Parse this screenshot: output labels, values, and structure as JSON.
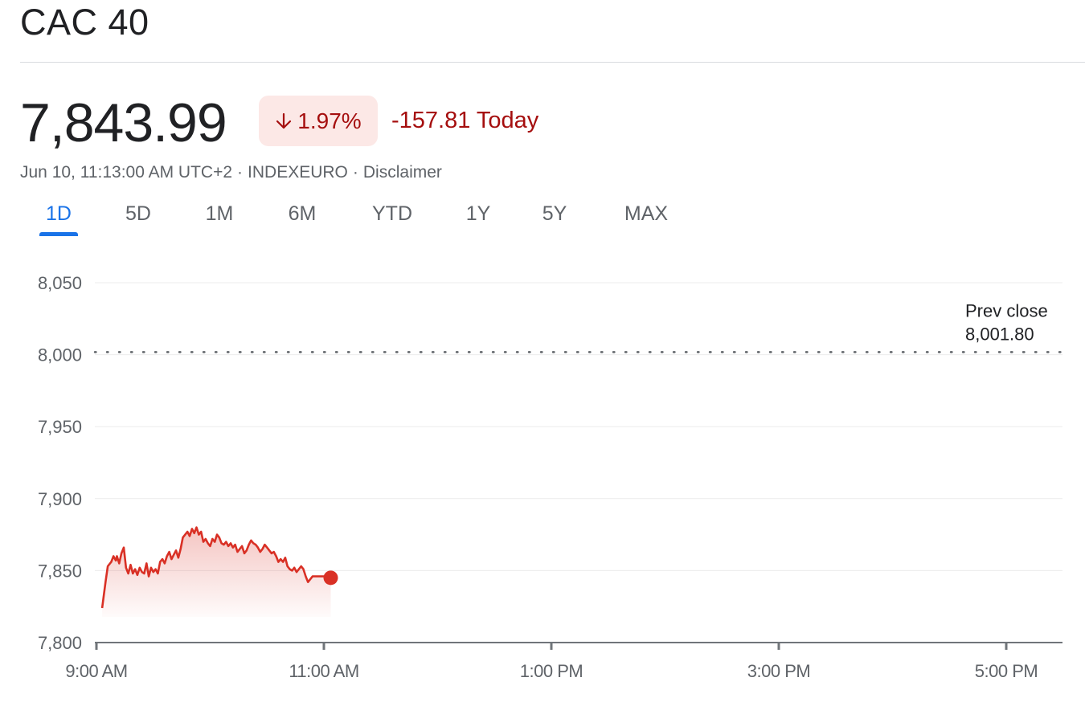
{
  "header": {
    "title": "CAC 40"
  },
  "quote": {
    "price": "7,843.99",
    "change_percent": "1.97%",
    "change_abs": "-157.81 Today",
    "timestamp": "Jun 10, 11:13:00 AM UTC+2",
    "exchange": "INDEXEURO",
    "disclaimer": "Disclaimer",
    "separator": "·",
    "down_color": "#d93025",
    "down_text_color": "#a50e0e"
  },
  "tabs": [
    {
      "label": "1D",
      "active": true
    },
    {
      "label": "5D"
    },
    {
      "label": "1M"
    },
    {
      "label": "6M"
    },
    {
      "label": "YTD"
    },
    {
      "label": "1Y"
    },
    {
      "label": "5Y"
    },
    {
      "label": "MAX"
    }
  ],
  "chart_data": {
    "type": "area",
    "ylim": [
      7800,
      8050
    ],
    "y_ticks": [
      8050,
      8000,
      7950,
      7900,
      7850,
      7800
    ],
    "y_tick_labels": [
      "8,050",
      "8,000",
      "7,950",
      "7,900",
      "7,850",
      "7,800"
    ],
    "x_range_hours": [
      9.0,
      17.5
    ],
    "x_ticks": [
      9,
      11,
      13,
      15,
      17
    ],
    "x_tick_labels": [
      "9:00 AM",
      "11:00 AM",
      "1:00 PM",
      "3:00 PM",
      "5:00 PM"
    ],
    "prev_close": {
      "label": "Prev close",
      "value": 8001.8,
      "value_label": "8,001.80"
    },
    "grid": true,
    "series": [
      {
        "color": "#d93025",
        "points": [
          [
            9.05,
            7824
          ],
          [
            9.08,
            7842
          ],
          [
            9.1,
            7853
          ],
          [
            9.13,
            7856
          ],
          [
            9.15,
            7860
          ],
          [
            9.17,
            7857
          ],
          [
            9.18,
            7860
          ],
          [
            9.2,
            7855
          ],
          [
            9.22,
            7862
          ],
          [
            9.24,
            7866
          ],
          [
            9.26,
            7852
          ],
          [
            9.28,
            7848
          ],
          [
            9.3,
            7854
          ],
          [
            9.32,
            7848
          ],
          [
            9.34,
            7851
          ],
          [
            9.36,
            7847
          ],
          [
            9.38,
            7852
          ],
          [
            9.4,
            7849
          ],
          [
            9.42,
            7848
          ],
          [
            9.44,
            7855
          ],
          [
            9.46,
            7846
          ],
          [
            9.48,
            7852
          ],
          [
            9.5,
            7849
          ],
          [
            9.52,
            7851
          ],
          [
            9.54,
            7848
          ],
          [
            9.56,
            7856
          ],
          [
            9.58,
            7858
          ],
          [
            9.6,
            7855
          ],
          [
            9.62,
            7860
          ],
          [
            9.64,
            7863
          ],
          [
            9.66,
            7858
          ],
          [
            9.68,
            7861
          ],
          [
            9.7,
            7864
          ],
          [
            9.72,
            7859
          ],
          [
            9.74,
            7865
          ],
          [
            9.76,
            7873
          ],
          [
            9.78,
            7875
          ],
          [
            9.8,
            7877
          ],
          [
            9.82,
            7874
          ],
          [
            9.84,
            7879
          ],
          [
            9.86,
            7876
          ],
          [
            9.88,
            7880
          ],
          [
            9.9,
            7875
          ],
          [
            9.92,
            7877
          ],
          [
            9.94,
            7870
          ],
          [
            9.96,
            7872
          ],
          [
            9.98,
            7869
          ],
          [
            10.0,
            7867
          ],
          [
            10.02,
            7872
          ],
          [
            10.04,
            7870
          ],
          [
            10.06,
            7875
          ],
          [
            10.08,
            7873
          ],
          [
            10.1,
            7869
          ],
          [
            10.12,
            7868
          ],
          [
            10.14,
            7870
          ],
          [
            10.16,
            7867
          ],
          [
            10.18,
            7869
          ],
          [
            10.2,
            7866
          ],
          [
            10.22,
            7868
          ],
          [
            10.24,
            7863
          ],
          [
            10.26,
            7865
          ],
          [
            10.28,
            7867
          ],
          [
            10.3,
            7862
          ],
          [
            10.32,
            7864
          ],
          [
            10.34,
            7868
          ],
          [
            10.36,
            7871
          ],
          [
            10.38,
            7869
          ],
          [
            10.4,
            7868
          ],
          [
            10.42,
            7866
          ],
          [
            10.44,
            7863
          ],
          [
            10.46,
            7865
          ],
          [
            10.48,
            7868
          ],
          [
            10.5,
            7866
          ],
          [
            10.52,
            7864
          ],
          [
            10.54,
            7862
          ],
          [
            10.56,
            7863
          ],
          [
            10.58,
            7860
          ],
          [
            10.6,
            7856
          ],
          [
            10.62,
            7858
          ],
          [
            10.64,
            7856
          ],
          [
            10.66,
            7859
          ],
          [
            10.68,
            7853
          ],
          [
            10.7,
            7851
          ],
          [
            10.72,
            7850
          ],
          [
            10.74,
            7852
          ],
          [
            10.76,
            7849
          ],
          [
            10.78,
            7851
          ],
          [
            10.8,
            7853
          ],
          [
            10.82,
            7851
          ],
          [
            10.84,
            7846
          ],
          [
            10.86,
            7842
          ],
          [
            10.88,
            7844
          ],
          [
            10.9,
            7846
          ],
          [
            11.0,
            7846
          ],
          [
            11.06,
            7845
          ]
        ]
      }
    ]
  }
}
